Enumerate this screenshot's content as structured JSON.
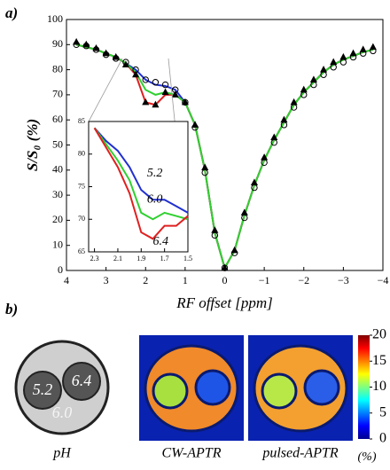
{
  "panel_labels": {
    "a": "a)",
    "b": "b)"
  },
  "chart_data": [
    {
      "type": "line",
      "xlabel": "RF offset [ppm]",
      "ylabel": "S/S₀  (%)",
      "x": [
        3.75,
        3.5,
        3.25,
        3,
        2.75,
        2.5,
        2.25,
        2,
        1.75,
        1.5,
        1.25,
        1,
        0.75,
        0.5,
        0.25,
        0,
        -0.25,
        -0.5,
        -0.75,
        -1,
        -1.25,
        -1.5,
        -1.75,
        -2,
        -2.25,
        -2.5,
        -2.75,
        -3,
        -3.25,
        -3.5,
        -3.75
      ],
      "series": [
        {
          "color": "#2030d0",
          "values": [
            90,
            89,
            88,
            86.5,
            85,
            82.5,
            80,
            76,
            74,
            73.5,
            72,
            67,
            58,
            40,
            15,
            1,
            8,
            22,
            34,
            44,
            52,
            59,
            66,
            71,
            75,
            79,
            82,
            84,
            85.5,
            87,
            88
          ]
        },
        {
          "color": "#e02020",
          "values": [
            90,
            89,
            88,
            86.5,
            85,
            82.5,
            78,
            67,
            66,
            70,
            70,
            67,
            58,
            40,
            15,
            1,
            8,
            22,
            34,
            44,
            52,
            59,
            66,
            71,
            75,
            79,
            82,
            84,
            85.5,
            87,
            88
          ]
        },
        {
          "color": "#30d030",
          "values": [
            90,
            89,
            88,
            86.5,
            85,
            82.5,
            79,
            72,
            70,
            71,
            70,
            67,
            58,
            40,
            15,
            1,
            8,
            22,
            34,
            44,
            52,
            59,
            66,
            71,
            75,
            79,
            82,
            84,
            85.5,
            87,
            88
          ]
        },
        {
          "color": "#000000",
          "marker": "circle",
          "values": [
            90,
            89.5,
            88,
            86,
            84.5,
            83,
            80,
            76,
            75,
            74,
            72,
            67,
            57,
            39,
            14,
            1,
            7,
            21,
            33,
            43,
            51,
            58,
            65,
            70,
            74,
            78,
            81,
            83,
            85,
            86.5,
            87.5
          ]
        },
        {
          "color": "#000000",
          "marker": "triangle",
          "values": [
            91,
            90,
            88.5,
            86.5,
            85,
            82,
            78,
            67,
            66,
            71,
            70,
            67,
            58,
            41,
            16,
            1,
            8,
            23,
            35,
            45,
            53,
            60,
            67,
            72,
            76,
            80,
            83,
            85,
            86.5,
            88,
            89
          ]
        }
      ],
      "xlim": [
        4,
        -4
      ],
      "ylim": [
        0,
        100
      ],
      "xticks": [
        4,
        3,
        2,
        1,
        0,
        {
          "value": -1,
          "label": "−1"
        },
        {
          "value": -2,
          "label": "−2"
        },
        {
          "value": -3,
          "label": "−3"
        },
        {
          "value": -4,
          "label": "−4"
        }
      ],
      "yticks": [
        0,
        10,
        20,
        30,
        40,
        50,
        60,
        70,
        80,
        90,
        100
      ]
    },
    {
      "type": "line",
      "x": [
        2.3,
        2.2,
        2.1,
        2.0,
        1.9,
        1.8,
        1.7,
        1.6,
        1.5
      ],
      "series": [
        {
          "name": "5.2",
          "color": "#2030d0",
          "values": [
            84,
            82,
            80.5,
            78,
            74.5,
            73,
            73,
            72,
            71
          ]
        },
        {
          "name": "6.0",
          "color": "#30d030",
          "values": [
            84,
            81.5,
            79,
            76,
            71,
            70,
            71,
            70.5,
            70
          ]
        },
        {
          "name": "6.4",
          "color": "#e02020",
          "values": [
            84,
            81,
            78,
            74,
            68,
            67,
            69,
            69,
            70.5
          ]
        }
      ],
      "xlim": [
        2.35,
        1.5
      ],
      "ylim": [
        65,
        85
      ],
      "xticks": [
        2.3,
        2.1,
        1.9,
        1.7,
        1.5
      ],
      "yticks": [
        65,
        70,
        75,
        80,
        85
      ]
    }
  ],
  "panel_b": {
    "phantom": {
      "labels": [
        "5.2",
        "6.4",
        "6.0"
      ],
      "caption": "pH"
    },
    "maps": [
      {
        "caption": "CW-APTR"
      },
      {
        "caption": "pulsed-APTR"
      }
    ],
    "colorbar": {
      "lim": [
        0,
        20
      ],
      "ticks": [
        0,
        5,
        10,
        15,
        20
      ],
      "unit": "(%)"
    }
  }
}
